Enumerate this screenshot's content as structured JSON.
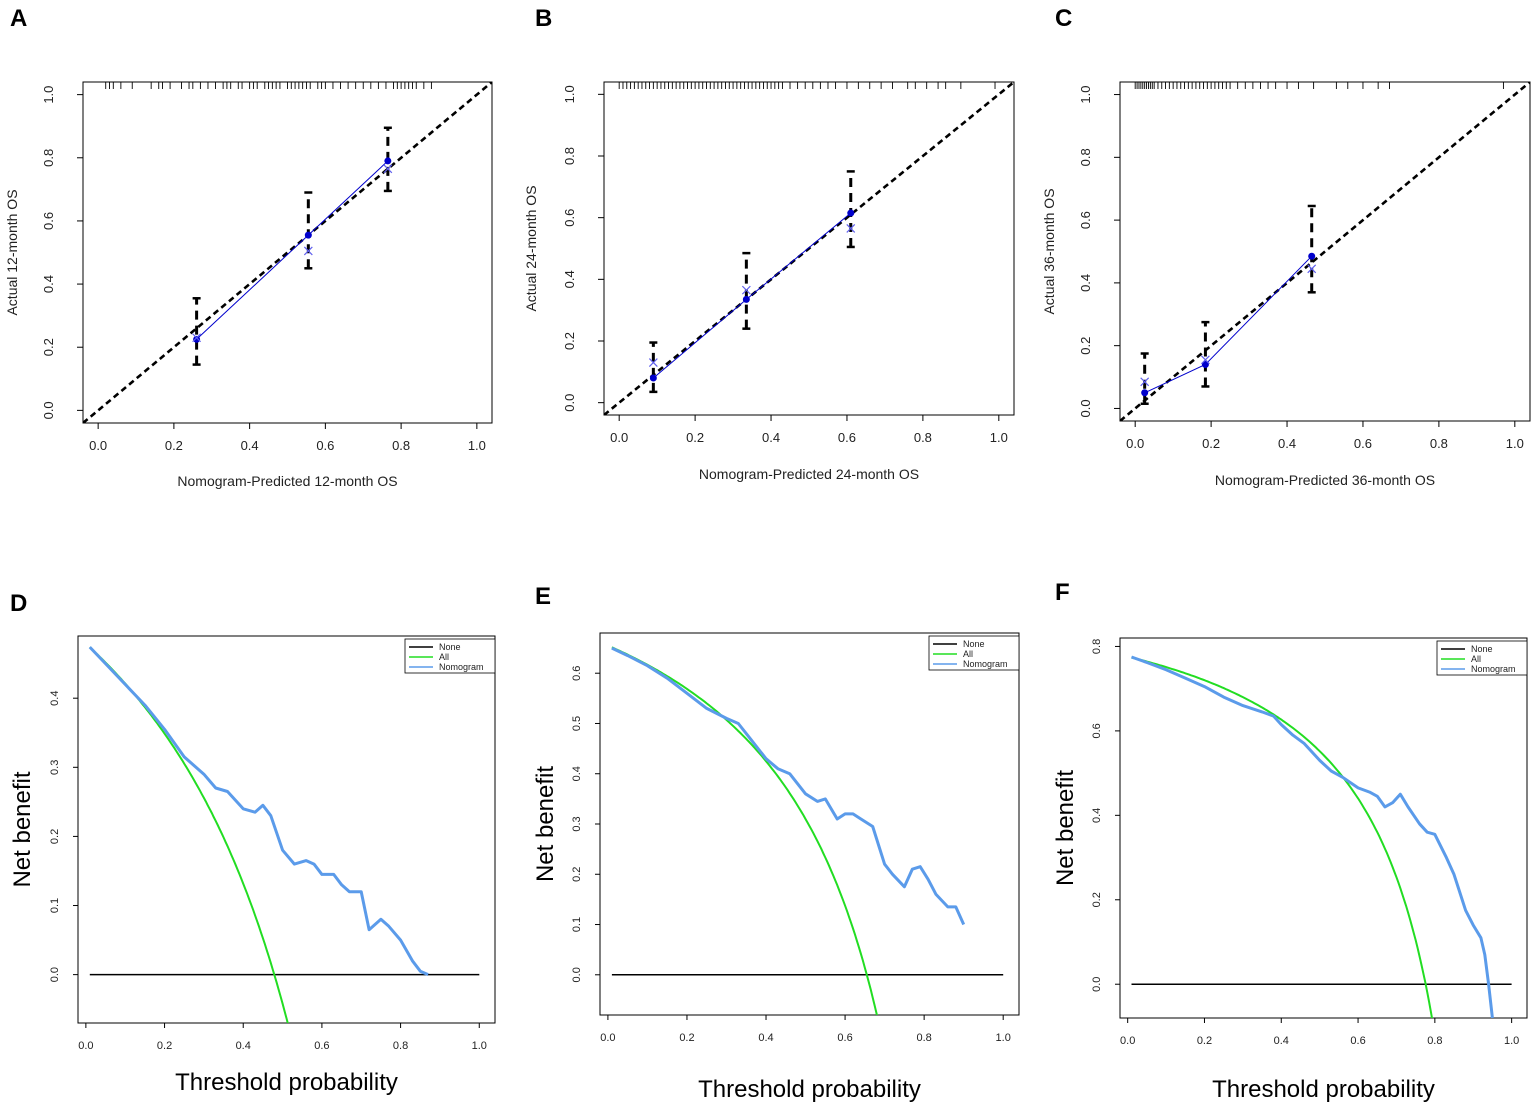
{
  "figure_title": "",
  "colors": {
    "axis": "#000000",
    "ideal": "#000000",
    "errorbar": "#000000",
    "observed": "#0000cc",
    "corrected": "#6060ee",
    "none": "#000000",
    "all": "#22dd22",
    "nomogram": "#5b9bea"
  },
  "chart_data": [
    {
      "panel": "A",
      "type": "line",
      "title": "",
      "xlabel": "Nomogram-Predicted 12-month OS",
      "ylabel": "Actual 12-month OS",
      "xlim": [
        -0.04,
        1.04
      ],
      "ylim": [
        -0.04,
        1.04
      ],
      "xticks": [
        "0.0",
        "0.2",
        "0.4",
        "0.6",
        "0.8",
        "1.0"
      ],
      "yticks": [
        "0.0",
        "0.2",
        "0.4",
        "0.6",
        "0.8",
        "1.0"
      ],
      "ideal": [
        [
          -0.04,
          -0.04
        ],
        [
          1.04,
          1.04
        ]
      ],
      "observed": {
        "x": [
          0.26,
          0.555,
          0.765
        ],
        "y": [
          0.225,
          0.555,
          0.79
        ]
      },
      "corrected": {
        "x": [
          0.26,
          0.555,
          0.765
        ],
        "y": [
          0.23,
          0.505,
          0.765
        ]
      },
      "ci_low": [
        0.145,
        0.45,
        0.695
      ],
      "ci_high": [
        0.355,
        0.69,
        0.895
      ],
      "rug": [
        0.02,
        0.03,
        0.04,
        0.06,
        0.09,
        0.14,
        0.16,
        0.17,
        0.19,
        0.22,
        0.24,
        0.25,
        0.27,
        0.29,
        0.31,
        0.33,
        0.34,
        0.35,
        0.37,
        0.38,
        0.4,
        0.41,
        0.42,
        0.44,
        0.45,
        0.46,
        0.47,
        0.48,
        0.5,
        0.51,
        0.52,
        0.53,
        0.54,
        0.55,
        0.56,
        0.58,
        0.59,
        0.6,
        0.62,
        0.64,
        0.66,
        0.68,
        0.7,
        0.72,
        0.74,
        0.76,
        0.78,
        0.79,
        0.8,
        0.81,
        0.82,
        0.83,
        0.84,
        0.86,
        0.88
      ]
    },
    {
      "panel": "B",
      "type": "line",
      "title": "",
      "xlabel": "Nomogram-Predicted 24-month OS",
      "ylabel": "Actual 24-month OS",
      "xlim": [
        -0.04,
        1.04
      ],
      "ylim": [
        -0.04,
        1.04
      ],
      "xticks": [
        "0.0",
        "0.2",
        "0.4",
        "0.6",
        "0.8",
        "1.0"
      ],
      "yticks": [
        "0.0",
        "0.2",
        "0.4",
        "0.6",
        "0.8",
        "1.0"
      ],
      "ideal": [
        [
          -0.04,
          -0.04
        ],
        [
          1.04,
          1.04
        ]
      ],
      "observed": {
        "x": [
          0.09,
          0.335,
          0.61
        ],
        "y": [
          0.08,
          0.335,
          0.615
        ]
      },
      "corrected": {
        "x": [
          0.09,
          0.335,
          0.61
        ],
        "y": [
          0.13,
          0.365,
          0.565
        ]
      },
      "ci_low": [
        0.035,
        0.24,
        0.505
      ],
      "ci_high": [
        0.195,
        0.485,
        0.75
      ],
      "rug": [
        0.0,
        0.01,
        0.02,
        0.03,
        0.04,
        0.05,
        0.06,
        0.07,
        0.08,
        0.09,
        0.1,
        0.11,
        0.12,
        0.13,
        0.14,
        0.15,
        0.16,
        0.17,
        0.18,
        0.19,
        0.2,
        0.21,
        0.22,
        0.23,
        0.24,
        0.25,
        0.26,
        0.27,
        0.28,
        0.29,
        0.3,
        0.31,
        0.32,
        0.33,
        0.34,
        0.35,
        0.36,
        0.37,
        0.38,
        0.39,
        0.4,
        0.41,
        0.42,
        0.43,
        0.45,
        0.47,
        0.49,
        0.51,
        0.53,
        0.55,
        0.57,
        0.6,
        0.63,
        0.66,
        0.69,
        0.72,
        0.76,
        0.78,
        0.81,
        0.84,
        0.86,
        0.9,
        0.99
      ]
    },
    {
      "panel": "C",
      "type": "line",
      "title": "",
      "xlabel": "Nomogram-Predicted 36-month OS",
      "ylabel": "Actual 36-month OS",
      "xlim": [
        -0.04,
        1.04
      ],
      "ylim": [
        -0.04,
        1.04
      ],
      "xticks": [
        "0.0",
        "0.2",
        "0.4",
        "0.6",
        "0.8",
        "1.0"
      ],
      "yticks": [
        "0.0",
        "0.2",
        "0.4",
        "0.6",
        "0.8",
        "1.0"
      ],
      "ideal": [
        [
          -0.04,
          -0.04
        ],
        [
          1.04,
          1.04
        ]
      ],
      "observed": {
        "x": [
          0.025,
          0.185,
          0.465
        ],
        "y": [
          0.05,
          0.14,
          0.485
        ]
      },
      "corrected": {
        "x": [
          0.025,
          0.185,
          0.465
        ],
        "y": [
          0.085,
          0.155,
          0.445
        ]
      },
      "ci_low": [
        0.015,
        0.07,
        0.37
      ],
      "ci_high": [
        0.175,
        0.275,
        0.645
      ],
      "rug": [
        0.0,
        0.005,
        0.01,
        0.015,
        0.02,
        0.025,
        0.03,
        0.035,
        0.04,
        0.045,
        0.05,
        0.06,
        0.07,
        0.08,
        0.09,
        0.1,
        0.11,
        0.12,
        0.13,
        0.14,
        0.15,
        0.16,
        0.17,
        0.18,
        0.19,
        0.2,
        0.21,
        0.22,
        0.23,
        0.24,
        0.25,
        0.27,
        0.29,
        0.31,
        0.33,
        0.35,
        0.37,
        0.4,
        0.43,
        0.47,
        0.53,
        0.56,
        0.6,
        0.64,
        0.67,
        0.97
      ]
    },
    {
      "panel": "D",
      "type": "line",
      "title": "",
      "xlabel": "Threshold probability",
      "ylabel": "Net benefit",
      "xlim": [
        -0.02,
        1.04
      ],
      "ylim": [
        -0.07,
        0.49
      ],
      "xticks": [
        0.0,
        0.2,
        0.4,
        0.6,
        0.8,
        1.0
      ],
      "yticks": [
        0.0,
        0.1,
        0.2,
        0.3,
        0.4
      ],
      "legend": {
        "position": "top-right",
        "entries": [
          "None",
          "All",
          "Nomogram"
        ]
      },
      "prevalence": 0.479,
      "none": {
        "x": [
          0.01,
          1.0
        ],
        "y": [
          0.0,
          0.0
        ]
      },
      "nomogram": {
        "x": [
          0.01,
          0.05,
          0.1,
          0.15,
          0.2,
          0.25,
          0.3,
          0.33,
          0.36,
          0.4,
          0.43,
          0.45,
          0.47,
          0.5,
          0.53,
          0.56,
          0.58,
          0.6,
          0.63,
          0.65,
          0.67,
          0.7,
          0.72,
          0.75,
          0.77,
          0.8,
          0.83,
          0.85,
          0.87
        ],
        "y": [
          0.474,
          0.45,
          0.42,
          0.39,
          0.355,
          0.315,
          0.29,
          0.27,
          0.265,
          0.24,
          0.235,
          0.245,
          0.23,
          0.18,
          0.16,
          0.165,
          0.16,
          0.145,
          0.145,
          0.13,
          0.12,
          0.12,
          0.065,
          0.08,
          0.07,
          0.05,
          0.02,
          0.005,
          0.0
        ]
      }
    },
    {
      "panel": "E",
      "type": "line",
      "title": "",
      "xlabel": "Threshold probability",
      "ylabel": "Net benefit",
      "xlim": [
        -0.02,
        1.04
      ],
      "ylim": [
        -0.08,
        0.68
      ],
      "xticks": [
        0.0,
        0.2,
        0.4,
        0.6,
        0.8,
        1.0
      ],
      "yticks": [
        0.0,
        0.1,
        0.2,
        0.3,
        0.4,
        0.5,
        0.6
      ],
      "legend": {
        "position": "top-right",
        "entries": [
          "None",
          "All",
          "Nomogram"
        ]
      },
      "prevalence": 0.655,
      "none": {
        "x": [
          0.01,
          1.0
        ],
        "y": [
          0.0,
          0.0
        ]
      },
      "nomogram": {
        "x": [
          0.01,
          0.05,
          0.1,
          0.15,
          0.2,
          0.25,
          0.3,
          0.33,
          0.36,
          0.4,
          0.43,
          0.46,
          0.5,
          0.53,
          0.55,
          0.58,
          0.6,
          0.62,
          0.64,
          0.67,
          0.7,
          0.72,
          0.75,
          0.77,
          0.79,
          0.81,
          0.83,
          0.86,
          0.88,
          0.9
        ],
        "y": [
          0.65,
          0.635,
          0.615,
          0.59,
          0.56,
          0.53,
          0.51,
          0.5,
          0.47,
          0.43,
          0.41,
          0.4,
          0.36,
          0.345,
          0.35,
          0.31,
          0.32,
          0.32,
          0.31,
          0.295,
          0.22,
          0.2,
          0.175,
          0.21,
          0.215,
          0.19,
          0.16,
          0.135,
          0.135,
          0.1
        ]
      }
    },
    {
      "panel": "F",
      "type": "line",
      "title": "",
      "xlabel": "Threshold probability",
      "ylabel": "Net benefit",
      "xlim": [
        -0.02,
        1.04
      ],
      "ylim": [
        -0.08,
        0.82
      ],
      "xticks": [
        0.0,
        0.2,
        0.4,
        0.6,
        0.8,
        1.0
      ],
      "yticks": [
        0.0,
        0.2,
        0.4,
        0.6,
        0.8
      ],
      "legend": {
        "position": "top-right",
        "entries": [
          "None",
          "All",
          "Nomogram"
        ]
      },
      "prevalence": 0.776,
      "none": {
        "x": [
          0.01,
          1.0
        ],
        "y": [
          0.0,
          0.0
        ]
      },
      "nomogram": {
        "x": [
          0.01,
          0.05,
          0.1,
          0.15,
          0.2,
          0.25,
          0.3,
          0.35,
          0.38,
          0.4,
          0.43,
          0.46,
          0.5,
          0.53,
          0.56,
          0.6,
          0.63,
          0.65,
          0.67,
          0.69,
          0.71,
          0.73,
          0.76,
          0.78,
          0.8,
          0.83,
          0.85,
          0.88,
          0.9,
          0.92,
          0.93,
          0.94,
          0.95
        ],
        "y": [
          0.775,
          0.762,
          0.745,
          0.725,
          0.705,
          0.68,
          0.66,
          0.645,
          0.635,
          0.615,
          0.59,
          0.57,
          0.53,
          0.505,
          0.49,
          0.465,
          0.455,
          0.445,
          0.42,
          0.43,
          0.45,
          0.42,
          0.38,
          0.36,
          0.355,
          0.3,
          0.26,
          0.175,
          0.14,
          0.11,
          0.07,
          0.0,
          -0.08
        ]
      }
    }
  ]
}
